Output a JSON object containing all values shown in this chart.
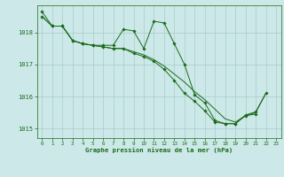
{
  "background_color": "#cce8e8",
  "grid_color": "#aacccc",
  "line_color": "#1a6b1a",
  "marker_color": "#1a6b1a",
  "xlabel": "Graphe pression niveau de la mer (hPa)",
  "xlabel_color": "#1a6b1a",
  "tick_color": "#1a6b1a",
  "ylim": [
    1014.7,
    1018.85
  ],
  "xlim": [
    -0.5,
    23.5
  ],
  "yticks": [
    1015,
    1016,
    1017,
    1018
  ],
  "xticks": [
    0,
    1,
    2,
    3,
    4,
    5,
    6,
    7,
    8,
    9,
    10,
    11,
    12,
    13,
    14,
    15,
    16,
    17,
    18,
    19,
    20,
    21,
    22,
    23
  ],
  "series": [
    {
      "x": [
        0,
        1,
        2,
        3,
        4,
        5,
        6,
        7,
        8,
        9,
        10,
        11,
        12,
        13,
        14,
        15,
        16,
        17,
        18,
        19,
        20,
        21
      ],
      "y": [
        1018.65,
        1018.2,
        1018.2,
        1017.75,
        1017.65,
        1017.6,
        1017.6,
        1017.6,
        1018.1,
        1018.05,
        1017.5,
        1018.35,
        1018.3,
        1017.65,
        1017.0,
        1016.05,
        1015.8,
        1015.25,
        1015.15,
        1015.15,
        1015.4,
        1015.45
      ],
      "has_markers": true
    },
    {
      "x": [
        0,
        1,
        2,
        3,
        4,
        5,
        6,
        7,
        8,
        9,
        10,
        11,
        12,
        13,
        14,
        15,
        16,
        17,
        18,
        19,
        20,
        21,
        22
      ],
      "y": [
        1018.5,
        1018.2,
        1018.2,
        1017.75,
        1017.65,
        1017.6,
        1017.55,
        1017.5,
        1017.5,
        1017.4,
        1017.3,
        1017.15,
        1016.95,
        1016.7,
        1016.45,
        1016.15,
        1015.9,
        1015.6,
        1015.3,
        1015.2,
        1015.4,
        1015.5,
        1016.1
      ],
      "has_markers": false
    },
    {
      "x": [
        0,
        1,
        2,
        3,
        4,
        5,
        6,
        7,
        8,
        9,
        10,
        11,
        12,
        13,
        14,
        15,
        16,
        17,
        18,
        19,
        20,
        21,
        22
      ],
      "y": [
        1018.5,
        1018.2,
        1018.2,
        1017.75,
        1017.65,
        1017.6,
        1017.55,
        1017.5,
        1017.5,
        1017.35,
        1017.25,
        1017.1,
        1016.85,
        1016.5,
        1016.1,
        1015.85,
        1015.55,
        1015.2,
        1015.15,
        1015.15,
        1015.42,
        1015.52,
        1016.1
      ],
      "has_markers": true
    }
  ]
}
